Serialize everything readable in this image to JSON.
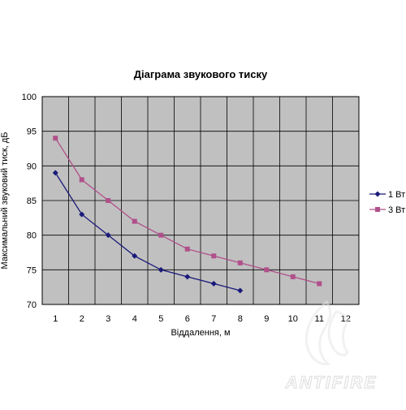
{
  "chart_data": {
    "type": "line",
    "title": "Діаграма звукового тиску",
    "xlabel": "Віддалення, м",
    "ylabel": "Максимальний звуковий тиск, дБ",
    "xlim": [
      0.5,
      12.5
    ],
    "ylim": [
      70,
      100
    ],
    "x_ticks": [
      1,
      2,
      3,
      4,
      5,
      6,
      7,
      8,
      9,
      10,
      11,
      12
    ],
    "y_ticks": [
      70,
      75,
      80,
      85,
      90,
      95,
      100
    ],
    "grid": true,
    "plot_background": "#c0c0c0",
    "legend_position": "right",
    "series": [
      {
        "name": "1 Вт",
        "color": "#1a1a7a",
        "marker": "diamond",
        "x": [
          1,
          2,
          3,
          4,
          5,
          6,
          7,
          8
        ],
        "values": [
          89,
          83,
          80,
          77,
          75,
          74,
          73,
          72
        ]
      },
      {
        "name": "3 Вт",
        "color": "#b0508a",
        "marker": "square",
        "x": [
          1,
          2,
          3,
          4,
          5,
          6,
          7,
          8,
          9,
          10,
          11
        ],
        "values": [
          94,
          88,
          85,
          82,
          80,
          78,
          77,
          76,
          75,
          74,
          73
        ]
      }
    ]
  },
  "watermark": {
    "text": "ANTIFIRE",
    "logo": "flame-logo-icon"
  }
}
